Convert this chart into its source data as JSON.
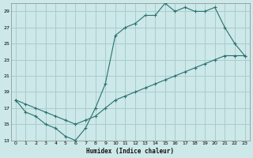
{
  "xlabel": "Humidex (Indice chaleur)",
  "xlim": [
    -0.5,
    23.5
  ],
  "ylim": [
    13,
    30
  ],
  "yticks": [
    13,
    15,
    17,
    19,
    21,
    23,
    25,
    27,
    29
  ],
  "xticks": [
    0,
    1,
    2,
    3,
    4,
    5,
    6,
    7,
    8,
    9,
    10,
    11,
    12,
    13,
    14,
    15,
    16,
    17,
    18,
    19,
    20,
    21,
    22,
    23
  ],
  "bg_color": "#cce8e8",
  "grid_color": "#aacccc",
  "line_color": "#2a7070",
  "line1_x": [
    0,
    1,
    2,
    3,
    4,
    5,
    6,
    7,
    8,
    9,
    10,
    11,
    12,
    13,
    14,
    15,
    16,
    17,
    18,
    19,
    20,
    21,
    22,
    23
  ],
  "line1_y": [
    18,
    16.5,
    16,
    15,
    14.5,
    13.5,
    13,
    14.5,
    17,
    20,
    26,
    27,
    27.5,
    28.5,
    28.5,
    30,
    29,
    29.5,
    29,
    29,
    29.5,
    27,
    25,
    23.5
  ],
  "line2_x": [
    0,
    1,
    2,
    3,
    4,
    5,
    6,
    7,
    8,
    9,
    10,
    11,
    12,
    13,
    14,
    15,
    16,
    17,
    18,
    19,
    20,
    21,
    22,
    23
  ],
  "line2_y": [
    18,
    17.5,
    17,
    16.5,
    16,
    15.5,
    15,
    15.5,
    16,
    17,
    18,
    18.5,
    19,
    19.5,
    20,
    20.5,
    21,
    21.5,
    22,
    22.5,
    23,
    23.5,
    23.5,
    23.5
  ]
}
